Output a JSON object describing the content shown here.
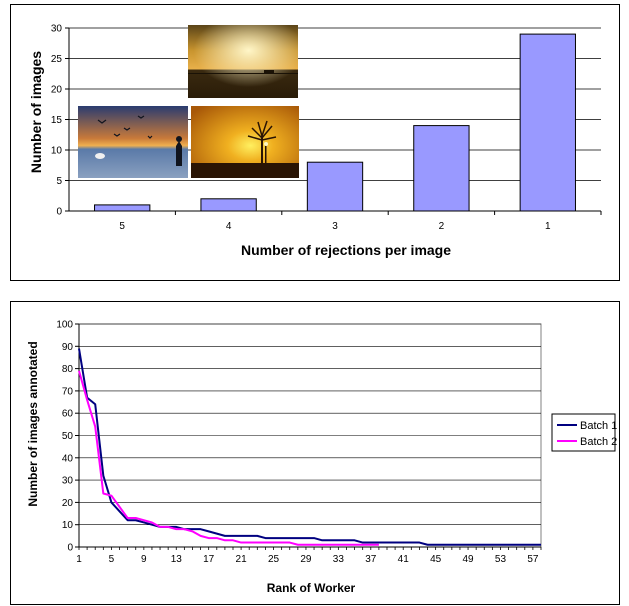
{
  "colors": {
    "bar": "#9999ff",
    "bar_edge": "#000000",
    "batch1": "#000080",
    "batch2": "#ff00ff",
    "grid": "#000000"
  },
  "chart_data": [
    {
      "type": "bar",
      "categories": [
        "5",
        "4",
        "3",
        "2",
        "1"
      ],
      "values": [
        1,
        2,
        8,
        14,
        29
      ],
      "xlabel": "Number of rejections per image",
      "ylabel": "Number of images",
      "ylim": [
        0,
        30
      ],
      "yticks": [
        0,
        5,
        10,
        15,
        20,
        25,
        30
      ],
      "grid": true,
      "images": [
        "sunset-over-sea-photo",
        "silhouette-with-birds-photo",
        "tree-at-sunset-photo"
      ]
    },
    {
      "type": "line",
      "xlabel": "Rank of Worker",
      "ylabel": "Number of images annotated",
      "ylim": [
        0,
        100
      ],
      "yticks": [
        0,
        10,
        20,
        30,
        40,
        50,
        60,
        70,
        80,
        90,
        100
      ],
      "xticks": [
        1,
        5,
        9,
        13,
        17,
        21,
        25,
        29,
        33,
        37,
        41,
        45,
        49,
        53,
        57
      ],
      "xlim": [
        1,
        58
      ],
      "grid": true,
      "legend_position": "right",
      "series": [
        {
          "name": "Batch 1",
          "x": [
            1,
            2,
            3,
            4,
            5,
            6,
            7,
            8,
            9,
            10,
            11,
            12,
            13,
            14,
            15,
            16,
            17,
            18,
            19,
            20,
            21,
            22,
            23,
            24,
            25,
            26,
            27,
            28,
            29,
            30,
            31,
            32,
            33,
            34,
            35,
            36,
            37,
            38,
            39,
            40,
            41,
            42,
            43,
            44,
            45,
            46,
            47,
            48,
            49,
            50,
            51,
            52,
            53,
            54,
            55,
            56,
            57,
            58
          ],
          "values": [
            89,
            67,
            64,
            32,
            20,
            16,
            12,
            12,
            11,
            10,
            9,
            9,
            9,
            8,
            8,
            8,
            7,
            6,
            5,
            5,
            5,
            5,
            5,
            4,
            4,
            4,
            4,
            4,
            4,
            4,
            3,
            3,
            3,
            3,
            3,
            2,
            2,
            2,
            2,
            2,
            2,
            2,
            2,
            1,
            1,
            1,
            1,
            1,
            1,
            1,
            1,
            1,
            1,
            1,
            1,
            1,
            1,
            1
          ]
        },
        {
          "name": "Batch 2",
          "x": [
            1,
            2,
            3,
            4,
            5,
            6,
            7,
            8,
            9,
            10,
            11,
            12,
            13,
            14,
            15,
            16,
            17,
            18,
            19,
            20,
            21,
            22,
            23,
            24,
            25,
            26,
            27,
            28,
            29,
            30,
            31,
            32,
            33,
            34,
            35,
            36,
            37,
            38
          ],
          "values": [
            79,
            66,
            54,
            24,
            23,
            18,
            13,
            13,
            12,
            11,
            9,
            9,
            8,
            8,
            7,
            5,
            4,
            4,
            3,
            3,
            2,
            2,
            2,
            2,
            2,
            2,
            2,
            1,
            1,
            1,
            1,
            1,
            1,
            1,
            1,
            1,
            1,
            1
          ]
        }
      ]
    }
  ]
}
